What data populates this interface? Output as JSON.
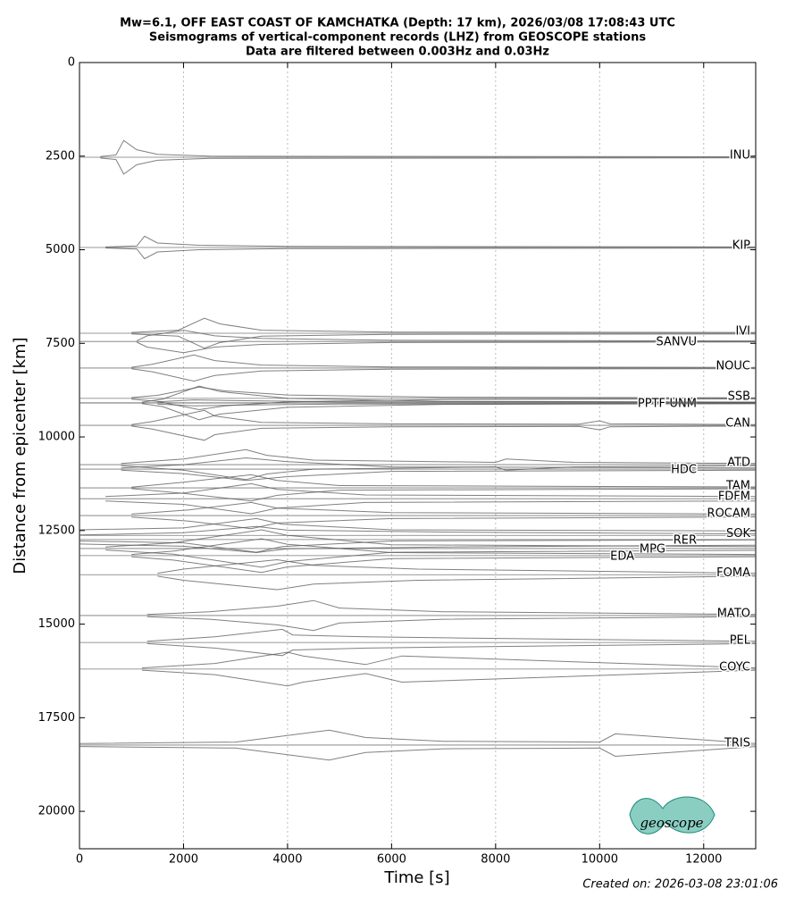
{
  "chart_data": {
    "type": "seismogram",
    "title": [
      "Mw=6.1, OFF EAST COAST OF KAMCHATKA (Depth: 17 km), 2026/03/08 17:08:43 UTC",
      "Seismograms of vertical-component records (LHZ) from GEOSCOPE stations",
      "Data are filtered between 0.003Hz and 0.03Hz"
    ],
    "xlabel": "Time [s]",
    "ylabel": "Distance from epicenter [km]",
    "xlim": [
      0,
      13000
    ],
    "ylim": [
      21000,
      0
    ],
    "xticks": [
      0,
      2000,
      4000,
      6000,
      8000,
      10000,
      12000
    ],
    "yticks": [
      0,
      2500,
      5000,
      7500,
      10000,
      12500,
      15000,
      17500,
      20000
    ],
    "grid": true,
    "color": "#555555",
    "stations": [
      {
        "name": "INU",
        "distance": 2530,
        "t": [
          400,
          700,
          850,
          1100,
          1500,
          2500,
          13000
        ],
        "amp": [
          20,
          60,
          450,
          200,
          80,
          30,
          15
        ]
      },
      {
        "name": "KIP",
        "distance": 4940,
        "t": [
          500,
          1100,
          1250,
          1500,
          2300,
          4000,
          13000
        ],
        "amp": [
          15,
          40,
          300,
          120,
          60,
          30,
          15
        ]
      },
      {
        "name": "IVI",
        "distance": 7230,
        "t": [
          1000,
          1900,
          2400,
          2700,
          3500,
          6000,
          13000
        ],
        "amp": [
          20,
          80,
          400,
          250,
          80,
          30,
          20
        ]
      },
      {
        "name": "SANVU",
        "distance": 7450,
        "t": [
          1100,
          1300,
          2000,
          2600,
          3500,
          6000,
          13000
        ],
        "amp": [
          20,
          150,
          300,
          150,
          80,
          30,
          15
        ]
      },
      {
        "name": "NOUC",
        "distance": 8160,
        "t": [
          1000,
          1400,
          2200,
          2600,
          3500,
          6000,
          13000
        ],
        "amp": [
          20,
          100,
          350,
          200,
          80,
          30,
          15
        ]
      },
      {
        "name": "SSB",
        "distance": 8970,
        "t": [
          1000,
          1500,
          2300,
          2800,
          4000,
          7000,
          13000
        ],
        "amp": [
          20,
          80,
          300,
          200,
          90,
          30,
          15
        ]
      },
      {
        "name": "UNM",
        "distance": 9090,
        "t": [
          1200,
          1600,
          2300,
          2700,
          4000,
          7000,
          13000
        ],
        "amp": [
          20,
          100,
          450,
          300,
          120,
          40,
          20
        ]
      },
      {
        "name": "PPTF",
        "distance": 9090,
        "t": [
          1500,
          2200,
          3000,
          5000,
          13000
        ],
        "amp": [
          30,
          80,
          60,
          30,
          20
        ]
      },
      {
        "name": "CAN",
        "distance": 9690,
        "t": [
          1000,
          1400,
          2400,
          2600,
          3500,
          6000,
          9600,
          10000,
          10200,
          13000
        ],
        "amp": [
          20,
          100,
          400,
          250,
          80,
          40,
          30,
          120,
          40,
          20
        ]
      },
      {
        "name": "ATD",
        "distance": 10740,
        "t": [
          800,
          2000,
          3200,
          3600,
          4500,
          8000,
          8200,
          9500,
          13000
        ],
        "amp": [
          30,
          150,
          400,
          250,
          120,
          60,
          150,
          60,
          30
        ]
      },
      {
        "name": "HDC",
        "distance": 10860,
        "t": [
          800,
          2000,
          3200,
          4000,
          6000,
          13000
        ],
        "amp": [
          30,
          120,
          300,
          200,
          60,
          30
        ]
      },
      {
        "name": "TAM",
        "distance": 11360,
        "t": [
          1000,
          2000,
          3300,
          3800,
          5000,
          13000
        ],
        "amp": [
          20,
          150,
          350,
          200,
          60,
          25
        ]
      },
      {
        "name": "FDFM",
        "distance": 11650,
        "t": [
          500,
          2000,
          3300,
          3800,
          5500,
          13000
        ],
        "amp": [
          60,
          150,
          400,
          250,
          100,
          60
        ]
      },
      {
        "name": "ROCAM",
        "distance": 12100,
        "t": [
          1000,
          2100,
          3300,
          3800,
          6000,
          13000
        ],
        "amp": [
          40,
          150,
          350,
          200,
          80,
          40
        ]
      },
      {
        "name": "SOK",
        "distance": 12630,
        "t": [
          0,
          2000,
          3400,
          3900,
          6000,
          13000
        ],
        "amp": [
          150,
          200,
          450,
          300,
          150,
          120
        ]
      },
      {
        "name": "RER",
        "distance": 12740,
        "t": [
          0,
          2000,
          3400,
          4000,
          7000,
          13000
        ],
        "amp": [
          120,
          180,
          350,
          250,
          200,
          150
        ]
      },
      {
        "name": "MPG",
        "distance": 12980,
        "t": [
          500,
          1800,
          3500,
          4000,
          6000,
          13000
        ],
        "amp": [
          40,
          150,
          500,
          350,
          100,
          50
        ]
      },
      {
        "name": "EDA",
        "distance": 13170,
        "t": [
          1000,
          1800,
          3500,
          4000,
          6000,
          13000
        ],
        "amp": [
          30,
          120,
          450,
          300,
          80,
          30
        ]
      },
      {
        "name": "FOMA",
        "distance": 13680,
        "t": [
          1500,
          2000,
          3800,
          4500,
          6500,
          13000
        ],
        "amp": [
          40,
          150,
          400,
          250,
          150,
          40
        ]
      },
      {
        "name": "MATO",
        "distance": 14770,
        "t": [
          1300,
          2500,
          3800,
          4500,
          5000,
          7000,
          13000
        ],
        "amp": [
          30,
          100,
          250,
          400,
          200,
          100,
          30
        ]
      },
      {
        "name": "PEL",
        "distance": 15490,
        "t": [
          1300,
          2600,
          3900,
          4100,
          5500,
          7300,
          13000
        ],
        "amp": [
          30,
          150,
          350,
          200,
          150,
          120,
          30
        ]
      },
      {
        "name": "COYC",
        "distance": 16200,
        "t": [
          1200,
          2600,
          4000,
          4300,
          5500,
          6200,
          13000
        ],
        "amp": [
          30,
          150,
          450,
          350,
          120,
          350,
          30
        ]
      },
      {
        "name": "TRIS",
        "distance": 18230,
        "t": [
          0,
          3000,
          4800,
          5500,
          7000,
          10000,
          10300,
          13000
        ],
        "amp": [
          40,
          80,
          400,
          200,
          100,
          80,
          300,
          40
        ]
      }
    ],
    "logo": "geoscope",
    "footer": "Created on: 2026-03-08 23:01:06"
  }
}
